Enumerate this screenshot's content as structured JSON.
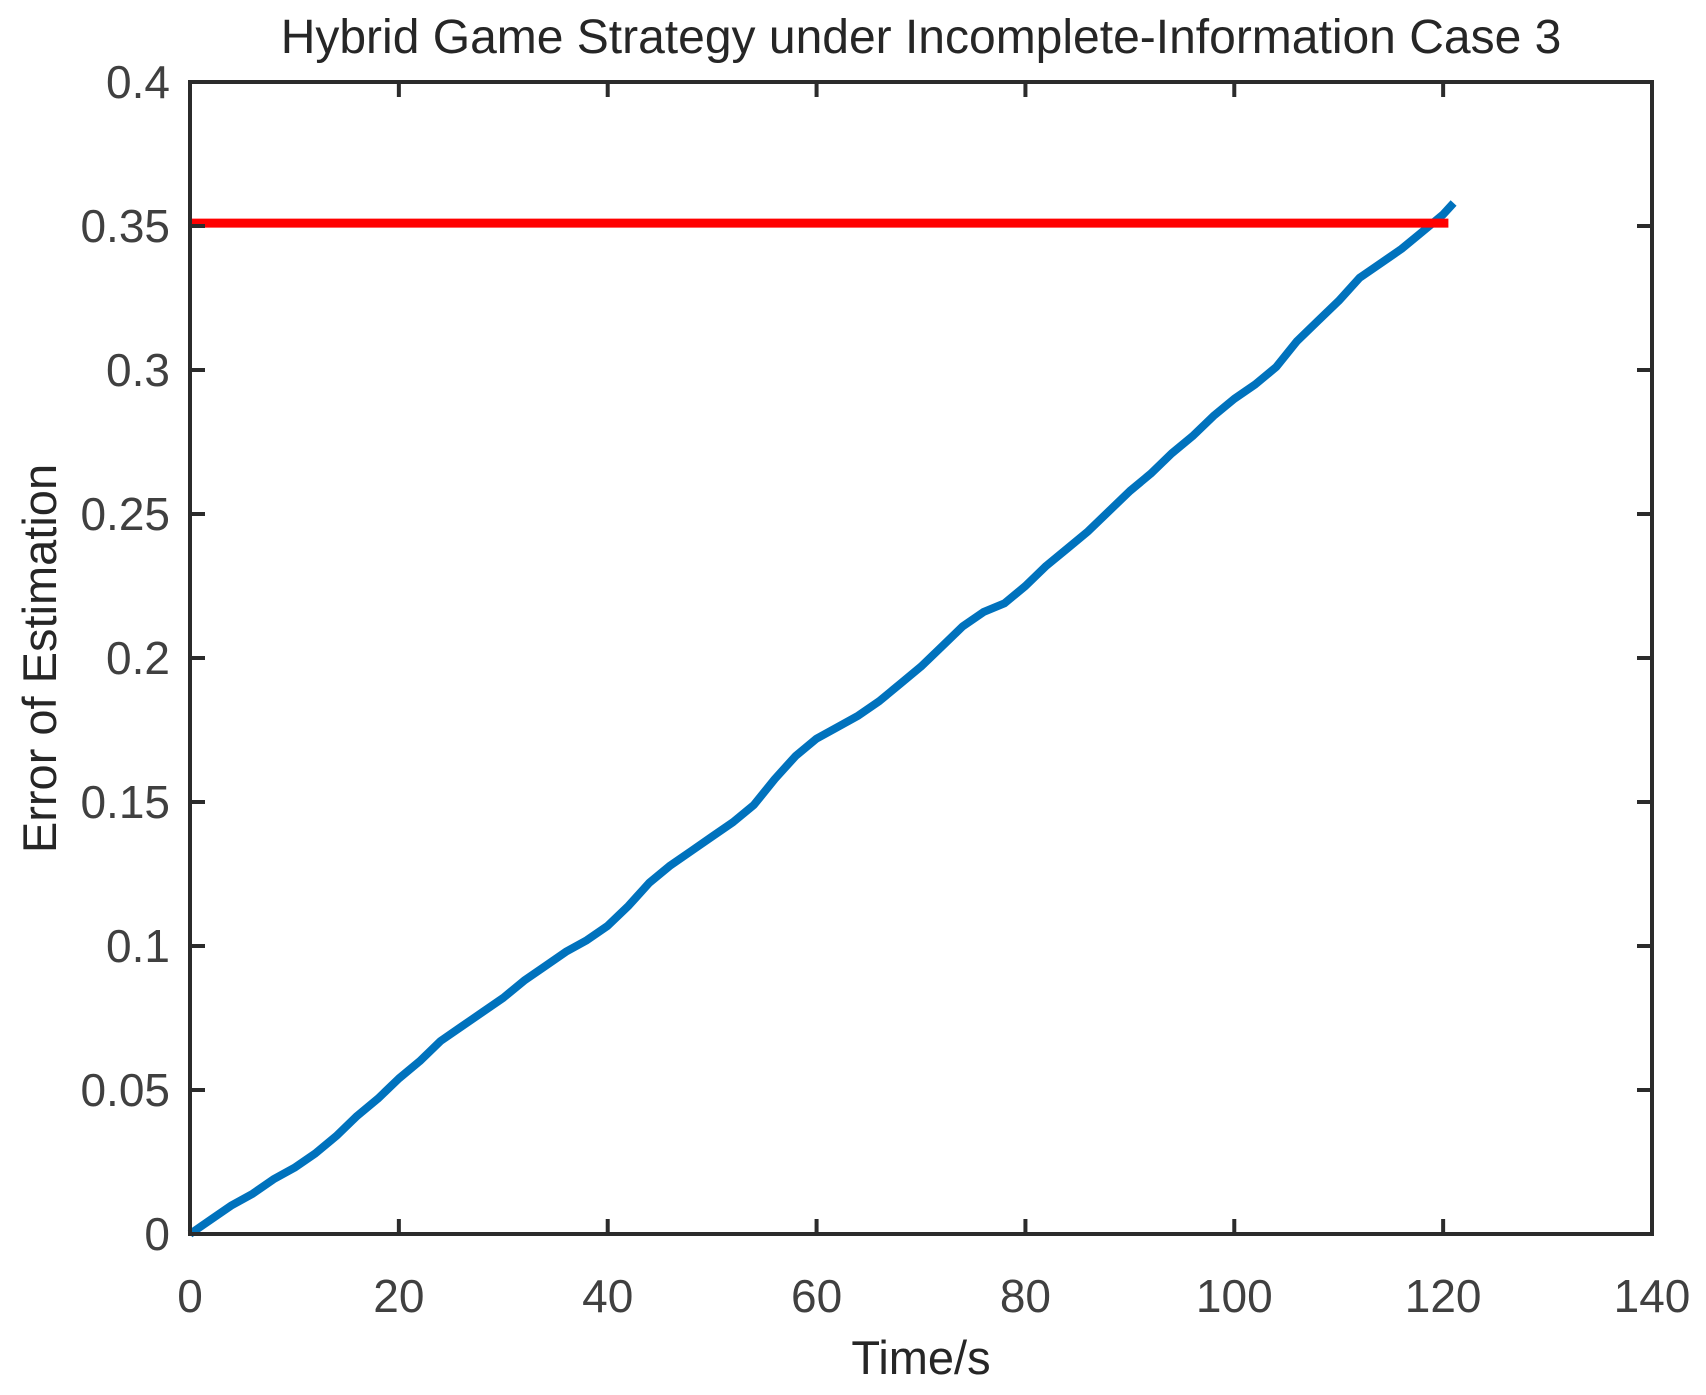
{
  "figure": {
    "background": "#ffffff"
  },
  "chart_data": {
    "type": "line",
    "title": "Hybrid Game Strategy under Incomplete-Information Case 3",
    "xlabel": "Time/s",
    "ylabel": "Error of Estimation",
    "xlim": [
      0,
      140
    ],
    "ylim": [
      0,
      0.4
    ],
    "xticks": [
      0,
      20,
      40,
      60,
      80,
      100,
      120,
      140
    ],
    "xtick_labels": [
      "0",
      "20",
      "40",
      "60",
      "80",
      "100",
      "120",
      "140"
    ],
    "yticks": [
      0,
      0.05,
      0.1,
      0.15,
      0.2,
      0.25,
      0.3,
      0.35,
      0.4
    ],
    "ytick_labels": [
      "0",
      "0.05",
      "0.1",
      "0.15",
      "0.2",
      "0.25",
      "0.3",
      "0.35",
      "0.4"
    ],
    "grid": false,
    "legend": null,
    "colors": {
      "axis": "#2b2b2b",
      "tick_text": "#404040",
      "title_text": "#262626",
      "estimation_error_line": "#0072BD",
      "threshold_line": "#FF0000"
    },
    "series": [
      {
        "name": "error-of-estimation",
        "color": "#0072BD",
        "line_width": 8,
        "x": [
          0,
          2,
          4,
          6,
          8,
          10,
          12,
          14,
          16,
          18,
          20,
          22,
          24,
          26,
          28,
          30,
          32,
          34,
          36,
          38,
          40,
          42,
          44,
          46,
          48,
          50,
          52,
          54,
          56,
          58,
          60,
          62,
          64,
          66,
          68,
          70,
          72,
          74,
          76,
          78,
          80,
          82,
          84,
          86,
          88,
          90,
          92,
          94,
          96,
          98,
          100,
          102,
          104,
          106,
          108,
          110,
          112,
          114,
          116,
          118,
          120,
          121
        ],
        "y": [
          0,
          0.005,
          0.01,
          0.014,
          0.019,
          0.023,
          0.028,
          0.034,
          0.041,
          0.047,
          0.054,
          0.06,
          0.067,
          0.072,
          0.077,
          0.082,
          0.088,
          0.093,
          0.098,
          0.102,
          0.107,
          0.114,
          0.122,
          0.128,
          0.133,
          0.138,
          0.143,
          0.149,
          0.158,
          0.166,
          0.172,
          0.176,
          0.18,
          0.185,
          0.191,
          0.197,
          0.204,
          0.211,
          0.216,
          0.219,
          0.225,
          0.232,
          0.238,
          0.244,
          0.251,
          0.258,
          0.264,
          0.271,
          0.277,
          0.284,
          0.29,
          0.295,
          0.301,
          0.31,
          0.317,
          0.324,
          0.332,
          0.337,
          0.342,
          0.348,
          0.354,
          0.358
        ]
      },
      {
        "name": "error-threshold",
        "color": "#FF0000",
        "line_width": 9,
        "x": [
          0,
          120.5
        ],
        "y": [
          0.351,
          0.351
        ]
      }
    ]
  }
}
